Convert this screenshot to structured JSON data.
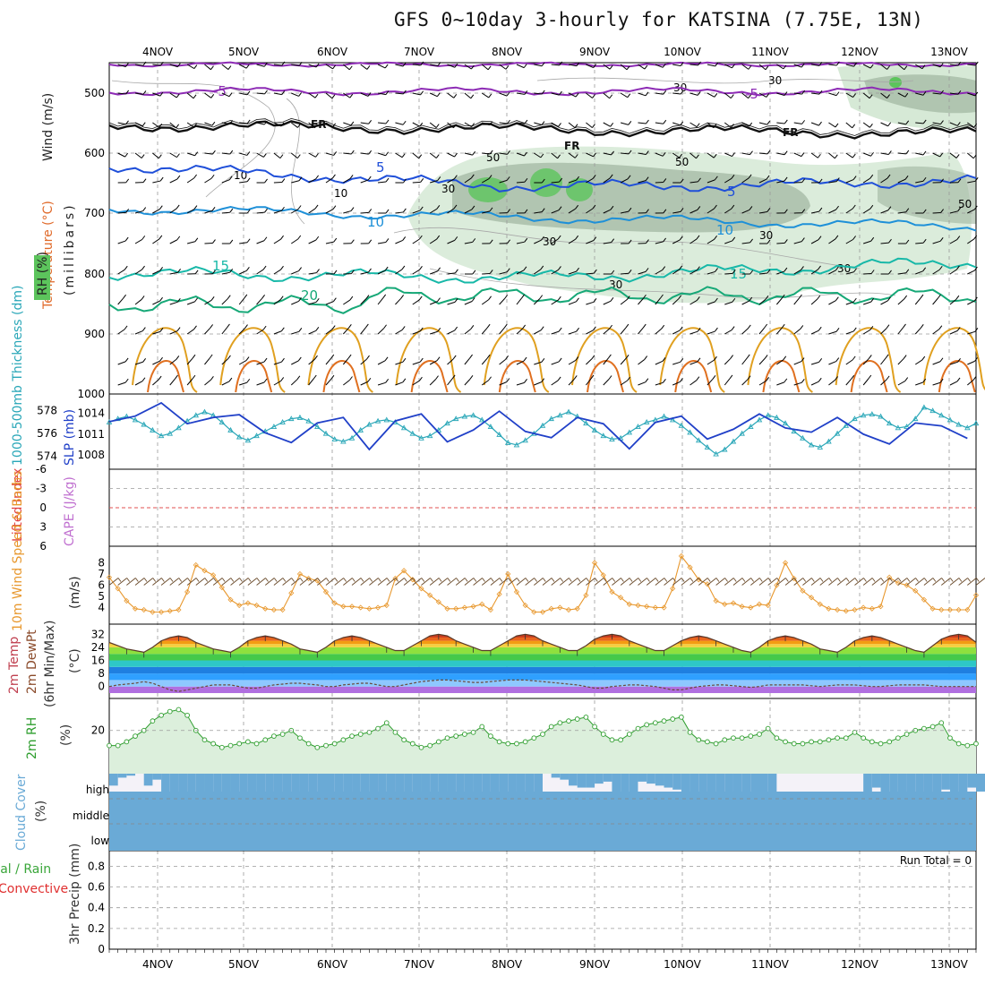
{
  "title": "GFS 0~10day 3-hourly for KATSINA (7.75E, 13N)",
  "colors": {
    "temp_neg": "#8d2bb5",
    "freezing": "#111111",
    "temp_5": "#1f4fd9",
    "temp_10": "#1e90d8",
    "temp_15": "#17b8a8",
    "temp_20": "#16a877",
    "warm_a": "#e0a020",
    "warm_b": "#e07020",
    "rh_fill": "#cfe5cf",
    "rh_dark": "#9fb59f",
    "rh_green": "#5cc45c",
    "thickness": "#2aa7b8",
    "slp": "#2040c8",
    "wind10": "#e8982e",
    "rh2m": "#2f9e2f",
    "cloud": "#6aaad6"
  },
  "chart_data": [
    {
      "panel": "upper-air",
      "type": "contour",
      "ylabel_parts": [
        "Temperature (°C)",
        "Wind (m/s)",
        "RH (%)"
      ],
      "ylabel_units": "(millibars)",
      "y_ticks": [
        "500",
        "600",
        "700",
        "800",
        "900",
        "1000"
      ],
      "contour_labels": [
        {
          "text": "-5",
          "kind": "temp_neg"
        },
        {
          "text": "-5",
          "kind": "temp_neg"
        },
        {
          "text": "FR",
          "kind": "freezing"
        },
        {
          "text": "FR",
          "kind": "freezing"
        },
        {
          "text": "FR",
          "kind": "freezing"
        },
        {
          "text": "5",
          "kind": "temp_5"
        },
        {
          "text": "5",
          "kind": "temp_5"
        },
        {
          "text": "10",
          "kind": "temp_10"
        },
        {
          "text": "10",
          "kind": "temp_10"
        },
        {
          "text": "15",
          "kind": "temp_15"
        },
        {
          "text": "15",
          "kind": "temp_15"
        },
        {
          "text": "20",
          "kind": "temp_20"
        }
      ],
      "rh_labels": [
        "30",
        "30",
        "10",
        "10",
        "50",
        "30",
        "30",
        "50",
        "30",
        "30",
        "50",
        "30"
      ]
    },
    {
      "panel": "thickness-slp",
      "type": "line",
      "ylabel": "1000-500mb Thickness (dm)",
      "ylabel2": "SLP (mb)",
      "y_ticks": [
        "578",
        "576",
        "574"
      ],
      "y2_ticks": [
        "1014",
        "1011",
        "1008"
      ],
      "series": [
        {
          "name": "1000-500mb Thickness (dm)",
          "values": [
            577.0,
            577.3,
            577.5,
            577.2,
            576.8,
            576.3,
            575.8,
            576.0,
            576.5,
            577.1,
            577.6,
            577.9,
            577.6,
            577.0,
            576.3,
            575.7,
            575.4,
            575.8,
            576.2,
            576.6,
            577.0,
            577.3,
            577.4,
            577.1,
            576.6,
            576.0,
            575.5,
            575.3,
            575.6,
            576.3,
            576.8,
            577.1,
            577.2,
            577.0,
            576.5,
            576.0,
            575.6,
            575.8,
            576.3,
            576.9,
            577.3,
            577.5,
            577.6,
            577.2,
            576.6,
            575.9,
            575.2,
            575.0,
            575.4,
            576.0,
            576.7,
            577.3,
            577.6,
            577.9,
            577.5,
            576.9,
            576.3,
            575.8,
            575.5,
            575.6,
            576.1,
            576.6,
            577.0,
            577.2,
            577.5,
            577.2,
            576.7,
            576.1,
            575.4,
            574.8,
            574.2,
            574.6,
            575.3,
            576.0,
            576.6,
            577.2,
            577.6,
            577.4,
            576.9,
            576.2,
            575.6,
            575.0,
            574.8,
            575.3,
            576.0,
            576.7,
            577.3,
            577.6,
            577.7,
            577.5,
            576.9,
            576.5,
            576.6,
            577.3,
            578.3,
            578.0,
            577.6,
            577.2,
            576.8,
            576.5,
            576.9
          ]
        },
        {
          "name": "SLP (mb)",
          "values": [
            1012.8,
            1013.5,
            1012.2,
            1013.6,
            1014.8,
            1014.3,
            1015.5,
            1015.8,
            1014.0,
            1012.5,
            1011.1,
            1012.3,
            1013.4,
            1014.4,
            1014.8,
            1013.8,
            1013.0,
            1012.5,
            1011.2,
            1010.1,
            1008.3,
            1009.8,
            1011.0,
            1012.0,
            1012.6,
            1013.6,
            1014.4,
            1013.4,
            1011.9,
            1010.3,
            1008.8,
            1010.2,
            1011.5,
            1012.9,
            1013.4,
            1014.2,
            1013.9,
            1012.6,
            1011.3,
            1009.9,
            1008.6,
            1010.4,
            1011.6,
            1012.7,
            1013.0,
            1014.3,
            1013.6,
            1012.5,
            1011.4,
            1010.2,
            1009.0,
            1010.5,
            1011.6,
            1012.8,
            1013.4,
            1014.4,
            1013.9,
            1012.5,
            1011.4,
            1010.0,
            1008.9,
            1010.2,
            1011.6,
            1012.7,
            1013.5,
            1014.4,
            1013.6,
            1012.6,
            1011.5,
            1010.3,
            1009.2,
            1010.8,
            1011.7,
            1012.7,
            1013.1,
            1013.9,
            1013.4,
            1012.8,
            1011.9,
            1011.0,
            1010.4,
            1011.3,
            1012.1,
            1012.9,
            1013.4,
            1012.4,
            1012.3,
            1011.0,
            1009.8,
            1008.3,
            1009.6,
            1010.8,
            1011.8,
            1012.6,
            1013.3,
            1013.9,
            1012.2,
            1010.9,
            1009.3,
            1010.4,
            1010.1
          ]
        }
      ]
    },
    {
      "panel": "lifted-cape",
      "type": "line",
      "ylabel": "Lifted Index",
      "ylabel2": "CAPE (J/kg)",
      "y_ticks": [
        "-6",
        "-3",
        "0",
        "3",
        "6"
      ],
      "series": [
        {
          "name": "Lifted Index",
          "values": [
            0
          ]
        }
      ]
    },
    {
      "panel": "wind10m",
      "type": "line",
      "ylabel": "10m Wind Speed & Barbs",
      "ylabel_units": "(m/s)",
      "y_ticks": [
        "8",
        "7",
        "6",
        "5",
        "4"
      ],
      "series": [
        {
          "name": "10m Wind Speed",
          "values": [
            6.7,
            5.7,
            4.6,
            3.9,
            3.8,
            3.6,
            3.6,
            3.7,
            3.8,
            5.4,
            7.8,
            7.3,
            6.9,
            5.8,
            4.7,
            4.2,
            4.4,
            4.2,
            3.9,
            3.8,
            3.8,
            5.3,
            7.0,
            6.6,
            6.4,
            5.4,
            4.4,
            4.1,
            4.1,
            4.0,
            3.9,
            4.0,
            4.2,
            6.6,
            7.3,
            6.5,
            5.7,
            5.1,
            4.5,
            3.9,
            3.9,
            4.0,
            4.1,
            4.3,
            3.8,
            5.2,
            7.0,
            5.4,
            4.2,
            3.6,
            3.6,
            3.9,
            4.0,
            3.8,
            3.9,
            5.1,
            8.0,
            6.9,
            5.4,
            4.9,
            4.3,
            4.2,
            4.1,
            4.0,
            4.0,
            5.7,
            8.6,
            7.6,
            6.5,
            6.1,
            4.6,
            4.3,
            4.4,
            4.1,
            4.0,
            4.3,
            4.2,
            6.0,
            8.0,
            6.6,
            5.5,
            4.9,
            4.3,
            3.9,
            3.8,
            3.7,
            3.8,
            4.0,
            3.9,
            4.1,
            6.7,
            6.2,
            6.0,
            5.5,
            4.7,
            3.9,
            3.8,
            3.8,
            3.8,
            3.8,
            5.1
          ]
        }
      ]
    },
    {
      "panel": "temp2m",
      "type": "area",
      "ylabel": "2m Temp",
      "ylabel2": "2m DewPt",
      "ylabel3": "(6hr Min/Max)",
      "ylabel_units": "(°C)",
      "y_ticks": [
        "32",
        "24",
        "16",
        "8",
        "0"
      ],
      "series": [
        {
          "name": "2m Temp",
          "values": [
            27,
            25,
            23,
            22,
            21,
            24,
            28,
            30,
            31,
            30,
            27,
            25,
            23,
            22,
            21,
            24,
            28,
            30,
            31,
            30,
            28,
            26,
            23,
            22,
            21,
            24,
            28,
            30,
            31,
            30,
            28,
            26,
            24,
            22,
            22,
            25,
            28,
            31,
            32,
            31,
            28,
            26,
            24,
            22,
            22,
            25,
            28,
            31,
            32,
            31,
            28,
            26,
            24,
            22,
            22,
            25,
            29,
            31,
            32,
            31,
            28,
            26,
            24,
            22,
            22,
            25,
            28,
            30,
            31,
            30,
            28,
            26,
            24,
            22,
            21,
            24,
            28,
            30,
            31,
            30,
            28,
            26,
            23,
            22,
            21,
            24,
            28,
            30,
            31,
            30,
            28,
            26,
            24,
            22,
            21,
            25,
            29,
            31,
            32,
            31,
            27
          ]
        },
        {
          "name": "2m DewPt",
          "values": [
            0,
            1,
            1.5,
            2,
            3,
            2,
            0,
            -2,
            -3,
            -2,
            -1,
            0,
            1,
            1,
            1,
            0,
            -1,
            -1,
            0,
            1,
            1.5,
            2,
            2,
            1.5,
            1,
            0,
            0,
            1,
            1.5,
            2,
            2,
            1,
            0,
            0,
            1,
            2,
            3,
            3.5,
            4,
            4,
            3.5,
            3,
            2.5,
            2.5,
            3,
            3.5,
            4,
            4,
            4,
            3.5,
            3,
            2.5,
            2,
            1.5,
            1,
            0,
            -1,
            -1,
            0,
            0.5,
            1,
            1,
            0.5,
            0,
            -1,
            -2,
            -2,
            -1,
            0,
            0.5,
            1,
            1,
            0.5,
            0,
            -0.5,
            0,
            1,
            1,
            1,
            1,
            1,
            0.5,
            0,
            0.5,
            1,
            1,
            1,
            0.5,
            0,
            0,
            0.5,
            1,
            1,
            1,
            1,
            0.5,
            0,
            0,
            0,
            0,
            0
          ]
        }
      ]
    },
    {
      "panel": "rh2m",
      "type": "area",
      "ylabel": "2m RH",
      "ylabel_units": "(%)",
      "y_ticks": [
        "20"
      ],
      "series": [
        {
          "name": "2m RH",
          "values": [
            12,
            12,
            14,
            17,
            20,
            25,
            28,
            30,
            31,
            28,
            20,
            15,
            13,
            11,
            12,
            13,
            14,
            13,
            15,
            17,
            18,
            20,
            16,
            13,
            11,
            12,
            13,
            15,
            17,
            18,
            19,
            21,
            24,
            19,
            15,
            13,
            11,
            12,
            14,
            16,
            17,
            18,
            19,
            22,
            17,
            14,
            13,
            13,
            14,
            16,
            18,
            22,
            24,
            25,
            26,
            27,
            22,
            18,
            15,
            15,
            18,
            21,
            23,
            24,
            25,
            26,
            27,
            19,
            15,
            14,
            13,
            15,
            16,
            16,
            17,
            18,
            21,
            16,
            14,
            13,
            13,
            14,
            14,
            15,
            16,
            16,
            19,
            16,
            14,
            13,
            14,
            16,
            18,
            20,
            21,
            22,
            24,
            16,
            13,
            12,
            13
          ]
        }
      ]
    },
    {
      "panel": "cloud",
      "type": "heatmap",
      "ylabel": "Cloud Cover",
      "ylabel_units": "(%)",
      "levels": [
        "high",
        "middle",
        "low"
      ],
      "high_cover": [
        60,
        20,
        10,
        0,
        60,
        30,
        90,
        90,
        90,
        90,
        90,
        90,
        90,
        90,
        90,
        90,
        90,
        90,
        90,
        90,
        90,
        90,
        90,
        90,
        90,
        90,
        90,
        90,
        90,
        90,
        90,
        90,
        90,
        90,
        90,
        90,
        90,
        90,
        90,
        90,
        90,
        90,
        90,
        90,
        90,
        90,
        90,
        90,
        90,
        90,
        0,
        20,
        30,
        60,
        70,
        70,
        50,
        40,
        90,
        90,
        90,
        40,
        50,
        60,
        70,
        80,
        90,
        90,
        90,
        90,
        90,
        90,
        90,
        90,
        90,
        90,
        90,
        0,
        0,
        0,
        0,
        0,
        0,
        0,
        0,
        0,
        0,
        90,
        70,
        90,
        90,
        90,
        90,
        90,
        90,
        90,
        80,
        90,
        90,
        70,
        90
      ]
    },
    {
      "panel": "precip",
      "type": "bar",
      "ylabel": "Total / Rain",
      "ylabel2": "Convective",
      "ylabel3": "3hr Precip (mm)",
      "y_ticks": [
        "0.8",
        "0.6",
        "0.4",
        "0.2",
        "0"
      ],
      "run_total": "Run Total = 0",
      "values": [
        0
      ]
    }
  ],
  "x_axis": {
    "top_labels": [
      "4NOV",
      "5NOV",
      "6NOV",
      "7NOV",
      "8NOV",
      "9NOV",
      "10NOV",
      "11NOV",
      "12NOV",
      "13NOV"
    ],
    "bottom_labels": [
      "4NOV",
      "5NOV",
      "6NOV",
      "7NOV",
      "8NOV",
      "9NOV",
      "10NOV",
      "11NOV",
      "12NOV",
      "13NOV"
    ]
  }
}
